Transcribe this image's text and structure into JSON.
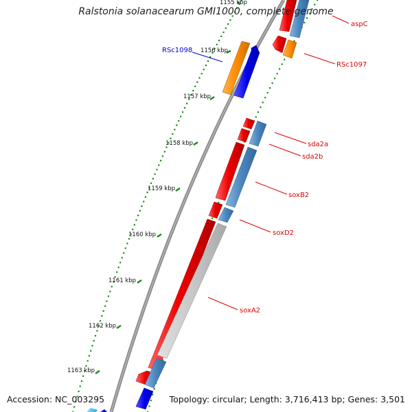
{
  "title": "Ralstonia solanacearum GMI1000, complete genome",
  "footer": {
    "accession_label": "Accession:",
    "accession": "NC_003295",
    "topology": "Topology: circular; Length: 3,716,413 bp; Genes: 3,501"
  },
  "ticks": [
    "1155 kbp",
    "1156 kbp",
    "1157 kbp",
    "1158 kbp",
    "1159 kbp",
    "1160 kbp",
    "1161 kbp",
    "1162 kbp",
    "1163 kbp"
  ],
  "gene_labels": [
    {
      "name": "aspC",
      "color": "#dd0000"
    },
    {
      "name": "RSc1098",
      "color": "#0000cc"
    },
    {
      "name": "RSc1097",
      "color": "#dd0000"
    },
    {
      "name": "sda2a",
      "color": "#dd0000"
    },
    {
      "name": "sda2b",
      "color": "#dd0000"
    },
    {
      "name": "soxB2",
      "color": "#dd0000"
    },
    {
      "name": "soxD2",
      "color": "#dd0000"
    },
    {
      "name": "soxA2",
      "color": "#dd0000"
    }
  ],
  "colors": {
    "cds_forward": "#ee0000",
    "cds_reverse": "#0000ee",
    "gene_steelblue": "#4a86bf",
    "pseudo_orange": "#ff8c00",
    "backbone": "#888888",
    "tick_green": "#1a8a1a",
    "grey_gene": "#c8c8c8"
  }
}
